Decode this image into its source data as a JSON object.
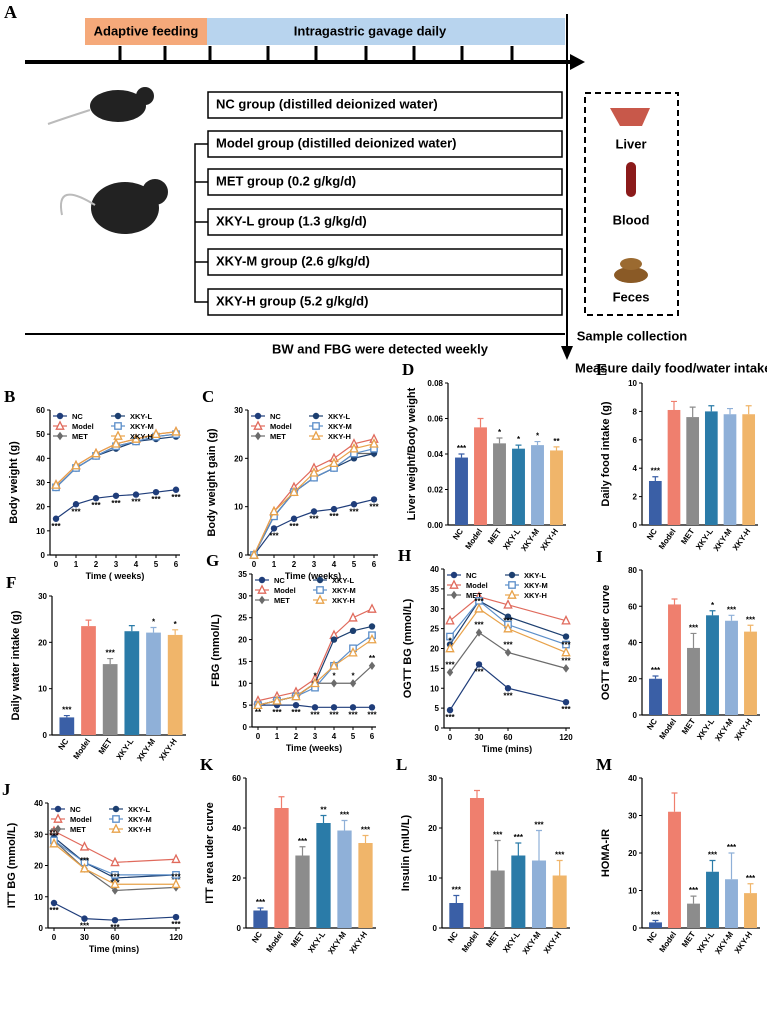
{
  "diagram": {
    "label": "A",
    "phases": [
      "Adaptive feeding",
      "Intragastric gavage daily"
    ],
    "groups": [
      "NC group (distilled deionized water)",
      "Model group (distilled deionized water)",
      "MET group (0.2 g/kg/d)",
      "XKY-L group (1.3 g/kg/d)",
      "XKY-M group (2.6 g/kg/d)",
      "XKY-H group (5.2 g/kg/d)"
    ],
    "samples": [
      "Liver",
      "Blood",
      "Feces"
    ],
    "sample_caption": "Sample collection",
    "notes": [
      "BW and FBG were detected weekly",
      "Measure daily food/water intake, OGTT, ITT"
    ]
  },
  "chart_data": [
    {
      "type": "line",
      "label": "B",
      "y_label": "Body weight (g)",
      "x_label": "Time ( weeks)",
      "x": [
        0,
        1,
        2,
        3,
        4,
        5,
        6
      ],
      "xlim": [
        0,
        6
      ],
      "xticks": [
        0,
        1,
        2,
        3,
        4,
        5,
        6
      ],
      "ylim": [
        0,
        60
      ],
      "yticks": [
        0,
        10,
        20,
        30,
        40,
        50,
        60
      ],
      "series": [
        {
          "name": "NC",
          "color": "#1f3d7a",
          "marker": "circle",
          "values": [
            15,
            21,
            23.5,
            24.5,
            25,
            26,
            27
          ],
          "annotations": [
            "***",
            "***",
            "***",
            "***",
            "***",
            "***",
            "***"
          ]
        },
        {
          "name": "Model",
          "color": "#e06a5c",
          "marker": "triangle",
          "values": [
            29,
            37,
            42,
            46,
            48,
            50,
            51
          ]
        },
        {
          "name": "MET",
          "color": "#6b6b6b",
          "marker": "diamond",
          "values": [
            28,
            36,
            41,
            45,
            47,
            49,
            50
          ]
        },
        {
          "name": "XKY-L",
          "color": "#1c3f70",
          "marker": "circle",
          "values": [
            28,
            36,
            41,
            44,
            47,
            48,
            49
          ]
        },
        {
          "name": "XKY-M",
          "color": "#5b8ec9",
          "marker": "square",
          "values": [
            28,
            36,
            41,
            45,
            47,
            49,
            50
          ]
        },
        {
          "name": "XKY-H",
          "color": "#e8a24a",
          "marker": "triangle",
          "values": [
            29,
            37,
            42,
            46,
            48,
            50,
            51
          ]
        }
      ]
    },
    {
      "type": "line",
      "label": "C",
      "y_label": "Body weight gain (g)",
      "x_label": "Time (weeks)",
      "x": [
        0,
        1,
        2,
        3,
        4,
        5,
        6
      ],
      "xlim": [
        0,
        6
      ],
      "xticks": [
        0,
        1,
        2,
        3,
        4,
        5,
        6
      ],
      "ylim": [
        0,
        30
      ],
      "yticks": [
        0,
        10,
        20,
        30
      ],
      "series": [
        {
          "name": "NC",
          "color": "#1f3d7a",
          "marker": "circle",
          "values": [
            0,
            5.5,
            7.5,
            9,
            9.5,
            10.5,
            11.5
          ],
          "annotations": [
            null,
            "***",
            "***",
            "***",
            "***",
            "***",
            "***"
          ]
        },
        {
          "name": "Model",
          "color": "#e06a5c",
          "marker": "triangle",
          "values": [
            0,
            9,
            14,
            18,
            20,
            23,
            24
          ]
        },
        {
          "name": "MET",
          "color": "#6b6b6b",
          "marker": "diamond",
          "values": [
            0,
            8,
            13,
            16,
            18,
            21,
            21
          ]
        },
        {
          "name": "XKY-L",
          "color": "#1c3f70",
          "marker": "circle",
          "values": [
            0,
            8,
            13,
            16,
            18,
            20,
            21
          ]
        },
        {
          "name": "XKY-M",
          "color": "#5b8ec9",
          "marker": "square",
          "values": [
            0,
            8,
            13,
            16,
            18,
            21,
            22
          ]
        },
        {
          "name": "XKY-H",
          "color": "#e8a24a",
          "marker": "triangle",
          "values": [
            0,
            9,
            13,
            17,
            19,
            22,
            23
          ]
        }
      ]
    },
    {
      "type": "bar",
      "label": "D",
      "y_label": "Liver weight/Body weight",
      "categories": [
        "NC",
        "Model",
        "MET",
        "XKY-L",
        "XKY-M",
        "XKY-H"
      ],
      "values": [
        0.038,
        0.055,
        0.046,
        0.043,
        0.045,
        0.042
      ],
      "errors": [
        0.002,
        0.005,
        0.003,
        0.002,
        0.002,
        0.002
      ],
      "annotations": [
        "***",
        null,
        "*",
        "*",
        "*",
        "**"
      ],
      "colors": [
        "#3a5fa6",
        "#ef7f6e",
        "#8c8c8c",
        "#2a7ba8",
        "#8fb0d8",
        "#f0b56a"
      ],
      "ylim": [
        0,
        0.08
      ],
      "yticks": [
        {
          "value": 0,
          "label": "0.00"
        },
        {
          "value": 0.02,
          "label": "0.02"
        },
        {
          "value": 0.04,
          "label": "0.04"
        },
        {
          "value": 0.06,
          "label": "0.06"
        },
        {
          "value": 0.08,
          "label": "0.08"
        }
      ]
    },
    {
      "type": "bar",
      "label": "E",
      "y_label": "Daily food intake (g)",
      "categories": [
        "NC",
        "Model",
        "MET",
        "XKY-L",
        "XKY-M",
        "XKY-H"
      ],
      "values": [
        3.1,
        8.1,
        7.6,
        8.0,
        7.8,
        7.8
      ],
      "errors": [
        0.3,
        0.6,
        0.7,
        0.4,
        0.4,
        0.6
      ],
      "annotations": [
        "***",
        null,
        null,
        null,
        null,
        null
      ],
      "colors": [
        "#3a5fa6",
        "#ef7f6e",
        "#8c8c8c",
        "#2a7ba8",
        "#8fb0d8",
        "#f0b56a"
      ],
      "ylim": [
        0,
        10
      ],
      "yticks": [
        0,
        2,
        4,
        6,
        8,
        10
      ]
    },
    {
      "type": "bar",
      "label": "F",
      "y_label": "Daily water intake (g)",
      "categories": [
        "NC",
        "Model",
        "MET",
        "XKY-L",
        "XKY-M",
        "XKY-H"
      ],
      "values": [
        3.8,
        23.5,
        15.3,
        22.4,
        22.1,
        21.6
      ],
      "errors": [
        0.4,
        1.3,
        1.2,
        1.2,
        1.1,
        1.1
      ],
      "annotations": [
        "***",
        null,
        "***",
        null,
        "*",
        "*"
      ],
      "colors": [
        "#3a5fa6",
        "#ef7f6e",
        "#8c8c8c",
        "#2a7ba8",
        "#8fb0d8",
        "#f0b56a"
      ],
      "ylim": [
        0,
        30
      ],
      "yticks": [
        0,
        10,
        20,
        30
      ]
    },
    {
      "type": "line",
      "label": "G",
      "y_label": "FBG (mmol/L)",
      "x_label": "Time (weeks)",
      "x": [
        0,
        1,
        2,
        3,
        4,
        5,
        6
      ],
      "xlim": [
        0,
        6
      ],
      "xticks": [
        0,
        1,
        2,
        3,
        4,
        5,
        6
      ],
      "ylim": [
        0,
        35
      ],
      "yticks": [
        0,
        5,
        10,
        15,
        20,
        25,
        30,
        35
      ],
      "series": [
        {
          "name": "NC",
          "color": "#1f3d7a",
          "marker": "circle",
          "values": [
            5,
            5,
            5,
            4.5,
            4.5,
            4.5,
            4.5
          ],
          "annotations": [
            "**",
            "***",
            "***",
            "***",
            "***",
            "***",
            "***"
          ]
        },
        {
          "name": "Model",
          "color": "#e06a5c",
          "marker": "triangle",
          "values": [
            6,
            7,
            8,
            11,
            21,
            25,
            27
          ]
        },
        {
          "name": "MET",
          "color": "#6b6b6b",
          "marker": "diamond",
          "values": [
            5,
            6,
            7,
            10,
            10,
            10,
            14
          ],
          "annotations": [
            null,
            null,
            null,
            "*",
            "*",
            "*",
            "**"
          ]
        },
        {
          "name": "XKY-L",
          "color": "#1c3f70",
          "marker": "circle",
          "values": [
            5,
            6,
            7,
            10,
            20,
            22,
            23
          ]
        },
        {
          "name": "XKY-M",
          "color": "#5b8ec9",
          "marker": "square",
          "values": [
            5,
            6,
            7,
            9,
            14,
            18,
            21
          ]
        },
        {
          "name": "XKY-H",
          "color": "#e8a24a",
          "marker": "triangle",
          "values": [
            5,
            6,
            7,
            10,
            14,
            17,
            20
          ]
        }
      ]
    },
    {
      "type": "line",
      "label": "H",
      "y_label": "OGTT BG (mmol/L)",
      "x_label": "Time (mins)",
      "x": [
        0,
        30,
        60,
        120
      ],
      "xlim": [
        0,
        120
      ],
      "xticks": [
        0,
        30,
        60,
        120
      ],
      "ylim": [
        0,
        40
      ],
      "yticks": [
        0,
        5,
        10,
        15,
        20,
        25,
        30,
        35,
        40
      ],
      "series": [
        {
          "name": "NC",
          "color": "#1f3d7a",
          "marker": "circle",
          "values": [
            4.5,
            16,
            10,
            6.5
          ],
          "annotations": [
            "***",
            "***",
            "***",
            "***"
          ]
        },
        {
          "name": "Model",
          "color": "#e06a5c",
          "marker": "triangle",
          "values": [
            27,
            33,
            31,
            27
          ]
        },
        {
          "name": "MET",
          "color": "#6b6b6b",
          "marker": "diamond",
          "values": [
            14,
            24,
            19,
            15
          ],
          "annotations": [
            "***",
            "***",
            "***",
            "***"
          ]
        },
        {
          "name": "XKY-L",
          "color": "#1c3f70",
          "marker": "circle",
          "values": [
            21,
            32,
            28,
            23
          ]
        },
        {
          "name": "XKY-M",
          "color": "#5b8ec9",
          "marker": "square",
          "values": [
            23,
            32,
            26,
            21
          ]
        },
        {
          "name": "XKY-H",
          "color": "#e8a24a",
          "marker": "triangle",
          "values": [
            20,
            30,
            25,
            19
          ],
          "annotations": [
            "*",
            "***",
            "***",
            "***"
          ]
        }
      ]
    },
    {
      "type": "bar",
      "label": "I",
      "y_label": "OGTT area uder curve",
      "categories": [
        "NC",
        "Model",
        "MET",
        "XKY-L",
        "XKY-M",
        "XKY-H"
      ],
      "values": [
        20,
        61,
        37,
        55,
        52,
        46
      ],
      "errors": [
        1.5,
        3,
        8,
        2.5,
        3,
        3.5
      ],
      "annotations": [
        "***",
        null,
        "***",
        "*",
        "***",
        "***"
      ],
      "colors": [
        "#3a5fa6",
        "#ef7f6e",
        "#8c8c8c",
        "#2a7ba8",
        "#8fb0d8",
        "#f0b56a"
      ],
      "ylim": [
        0,
        80
      ],
      "yticks": [
        0,
        20,
        40,
        60,
        80
      ]
    },
    {
      "type": "line",
      "label": "J",
      "y_label": "ITT BG (mmol/L)",
      "x_label": "Time (mins)",
      "x": [
        0,
        30,
        60,
        120
      ],
      "xlim": [
        0,
        120
      ],
      "xticks": [
        0,
        30,
        60,
        120
      ],
      "ylim": [
        0,
        40
      ],
      "yticks": [
        0,
        10,
        20,
        30,
        40
      ],
      "series": [
        {
          "name": "NC",
          "color": "#1f3d7a",
          "marker": "circle",
          "values": [
            8,
            3,
            2.5,
            3.5
          ],
          "annotations": [
            "***",
            "***",
            "***",
            "***"
          ]
        },
        {
          "name": "Model",
          "color": "#e06a5c",
          "marker": "triangle",
          "values": [
            31,
            26,
            21,
            22
          ]
        },
        {
          "name": "MET",
          "color": "#6b6b6b",
          "marker": "diamond",
          "values": [
            28,
            19,
            12,
            13
          ],
          "annotations": [
            "***",
            "**",
            "***",
            "***"
          ]
        },
        {
          "name": "XKY-L",
          "color": "#1c3f70",
          "marker": "circle",
          "values": [
            29,
            21,
            16,
            17
          ]
        },
        {
          "name": "XKY-M",
          "color": "#5b8ec9",
          "marker": "square",
          "values": [
            28,
            21,
            17,
            17
          ]
        },
        {
          "name": "XKY-H",
          "color": "#e8a24a",
          "marker": "triangle",
          "values": [
            27,
            19,
            14,
            14
          ],
          "annotations": [
            "***",
            "***",
            "***",
            "***"
          ]
        }
      ]
    },
    {
      "type": "bar",
      "label": "K",
      "y_label": "ITT area uder curve",
      "categories": [
        "NC",
        "Model",
        "MET",
        "XKY-L",
        "XKY-M",
        "XKY-H"
      ],
      "values": [
        7,
        48,
        29,
        42,
        39,
        34
      ],
      "errors": [
        1,
        4.5,
        3.5,
        3,
        4,
        3
      ],
      "annotations": [
        "***",
        null,
        "***",
        "**",
        "***",
        "***"
      ],
      "colors": [
        "#3a5fa6",
        "#ef7f6e",
        "#8c8c8c",
        "#2a7ba8",
        "#8fb0d8",
        "#f0b56a"
      ],
      "ylim": [
        0,
        60
      ],
      "yticks": [
        0,
        20,
        40,
        60
      ]
    },
    {
      "type": "bar",
      "label": "L",
      "y_label": "Insulin (mIU/L)",
      "categories": [
        "NC",
        "Model",
        "MET",
        "XKY-L",
        "XKY-M",
        "XKY-H"
      ],
      "values": [
        5,
        26,
        11.5,
        14.5,
        13.5,
        10.5
      ],
      "errors": [
        1.5,
        1.5,
        6,
        2.5,
        6,
        3
      ],
      "annotations": [
        "***",
        null,
        "***",
        "***",
        "***",
        "***"
      ],
      "colors": [
        "#3a5fa6",
        "#ef7f6e",
        "#8c8c8c",
        "#2a7ba8",
        "#8fb0d8",
        "#f0b56a"
      ],
      "ylim": [
        0,
        30
      ],
      "yticks": [
        0,
        10,
        20,
        30
      ]
    },
    {
      "type": "bar",
      "label": "M",
      "y_label": "HOMA-IR",
      "categories": [
        "NC",
        "Model",
        "MET",
        "XKY-L",
        "XKY-M",
        "XKY-H"
      ],
      "values": [
        1.5,
        31,
        6.5,
        15,
        13,
        9.3
      ],
      "errors": [
        0.5,
        5,
        2,
        3,
        7,
        2.5
      ],
      "annotations": [
        "***",
        null,
        "***",
        "***",
        "***",
        "***"
      ],
      "colors": [
        "#3a5fa6",
        "#ef7f6e",
        "#8c8c8c",
        "#2a7ba8",
        "#8fb0d8",
        "#f0b56a"
      ],
      "ylim": [
        0,
        40
      ],
      "yticks": [
        0,
        10,
        20,
        30,
        40
      ]
    }
  ]
}
